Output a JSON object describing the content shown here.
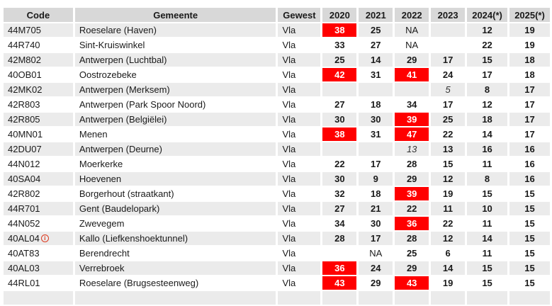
{
  "header": {
    "code": "Code",
    "gemeente": "Gemeente",
    "gewest": "Gewest",
    "years": [
      "2020",
      "2021",
      "2022",
      "2023",
      "2024(*)",
      "2025(*)"
    ]
  },
  "icons": {
    "info": "i"
  },
  "colors": {
    "highlight_red": "#ff0000",
    "header_bg": "#d8d8d8",
    "stripe_bg": "#ebebeb",
    "text": "#1a1a1a",
    "info_icon": "#dd3a1f"
  },
  "rows": [
    {
      "code": "44M705",
      "gemeente": "Roeselare (Haven)",
      "gewest": "Vla",
      "values": [
        {
          "t": "38",
          "hl": true
        },
        {
          "t": "25"
        },
        {
          "t": "NA",
          "plain": true
        },
        {
          "t": ""
        },
        {
          "t": "12"
        },
        {
          "t": "19"
        }
      ]
    },
    {
      "code": "44R740",
      "gemeente": "Sint-Kruiswinkel",
      "gewest": "Vla",
      "values": [
        {
          "t": "33"
        },
        {
          "t": "27"
        },
        {
          "t": "NA",
          "plain": true
        },
        {
          "t": ""
        },
        {
          "t": "22"
        },
        {
          "t": "19"
        }
      ]
    },
    {
      "code": "42M802",
      "gemeente": "Antwerpen (Luchtbal)",
      "gewest": "Vla",
      "values": [
        {
          "t": "25"
        },
        {
          "t": "14"
        },
        {
          "t": "29"
        },
        {
          "t": "17"
        },
        {
          "t": "15"
        },
        {
          "t": "18"
        }
      ]
    },
    {
      "code": "40OB01",
      "gemeente": "Oostrozebeke",
      "gewest": "Vla",
      "values": [
        {
          "t": "42",
          "hl": true
        },
        {
          "t": "31"
        },
        {
          "t": "41",
          "hl": true
        },
        {
          "t": "24"
        },
        {
          "t": "17"
        },
        {
          "t": "18"
        }
      ]
    },
    {
      "code": "42MK02",
      "gemeente": "Antwerpen (Merksem)",
      "gewest": "Vla",
      "values": [
        {
          "t": ""
        },
        {
          "t": ""
        },
        {
          "t": ""
        },
        {
          "t": "5",
          "it": true
        },
        {
          "t": "8"
        },
        {
          "t": "17"
        }
      ]
    },
    {
      "code": "42R803",
      "gemeente": "Antwerpen (Park Spoor Noord)",
      "gewest": "Vla",
      "values": [
        {
          "t": "27"
        },
        {
          "t": "18"
        },
        {
          "t": "34"
        },
        {
          "t": "17"
        },
        {
          "t": "12"
        },
        {
          "t": "17"
        }
      ]
    },
    {
      "code": "42R805",
      "gemeente": "Antwerpen (Belgiëlei)",
      "gewest": "Vla",
      "values": [
        {
          "t": "30"
        },
        {
          "t": "30"
        },
        {
          "t": "39",
          "hl": true
        },
        {
          "t": "25"
        },
        {
          "t": "18"
        },
        {
          "t": "17"
        }
      ]
    },
    {
      "code": "40MN01",
      "gemeente": "Menen",
      "gewest": "Vla",
      "values": [
        {
          "t": "38",
          "hl": true
        },
        {
          "t": "31"
        },
        {
          "t": "47",
          "hl": true
        },
        {
          "t": "22"
        },
        {
          "t": "14"
        },
        {
          "t": "17"
        }
      ]
    },
    {
      "code": "42DU07",
      "gemeente": "Antwerpen (Deurne)",
      "gewest": "Vla",
      "values": [
        {
          "t": ""
        },
        {
          "t": ""
        },
        {
          "t": "13",
          "it": true
        },
        {
          "t": "13"
        },
        {
          "t": "16"
        },
        {
          "t": "16"
        }
      ]
    },
    {
      "code": "44N012",
      "gemeente": "Moerkerke",
      "gewest": "Vla",
      "values": [
        {
          "t": "22"
        },
        {
          "t": "17"
        },
        {
          "t": "28"
        },
        {
          "t": "15"
        },
        {
          "t": "11"
        },
        {
          "t": "16"
        }
      ]
    },
    {
      "code": "40SA04",
      "gemeente": "Hoevenen",
      "gewest": "Vla",
      "values": [
        {
          "t": "30"
        },
        {
          "t": "9"
        },
        {
          "t": "29"
        },
        {
          "t": "12"
        },
        {
          "t": "8"
        },
        {
          "t": "16"
        }
      ]
    },
    {
      "code": "42R802",
      "gemeente": "Borgerhout (straatkant)",
      "gewest": "Vla",
      "values": [
        {
          "t": "32"
        },
        {
          "t": "18"
        },
        {
          "t": "39",
          "hl": true
        },
        {
          "t": "19"
        },
        {
          "t": "15"
        },
        {
          "t": "15"
        }
      ]
    },
    {
      "code": "44R701",
      "gemeente": "Gent (Baudelopark)",
      "gewest": "Vla",
      "values": [
        {
          "t": "27"
        },
        {
          "t": "21"
        },
        {
          "t": "22"
        },
        {
          "t": "11"
        },
        {
          "t": "10"
        },
        {
          "t": "15"
        }
      ]
    },
    {
      "code": "44N052",
      "gemeente": "Zwevegem",
      "gewest": "Vla",
      "values": [
        {
          "t": "34"
        },
        {
          "t": "30"
        },
        {
          "t": "36",
          "hl": true
        },
        {
          "t": "22"
        },
        {
          "t": "11"
        },
        {
          "t": "15"
        }
      ]
    },
    {
      "code": "40AL04",
      "info_icon": true,
      "gemeente": "Kallo (Liefkenshoektunnel)",
      "gewest": "Vla",
      "values": [
        {
          "t": "28"
        },
        {
          "t": "17"
        },
        {
          "t": "28"
        },
        {
          "t": "12"
        },
        {
          "t": "14"
        },
        {
          "t": "15"
        }
      ]
    },
    {
      "code": "40AT83",
      "gemeente": "Berendrecht",
      "gewest": "Vla",
      "values": [
        {
          "t": ""
        },
        {
          "t": "NA",
          "plain": true
        },
        {
          "t": "25"
        },
        {
          "t": "6"
        },
        {
          "t": "11"
        },
        {
          "t": "15"
        }
      ]
    },
    {
      "code": "40AL03",
      "gemeente": "Verrebroek",
      "gewest": "Vla",
      "values": [
        {
          "t": "36",
          "hl": true
        },
        {
          "t": "24"
        },
        {
          "t": "29"
        },
        {
          "t": "14"
        },
        {
          "t": "15"
        },
        {
          "t": "15"
        }
      ]
    },
    {
      "code": "44RL01",
      "gemeente": "Roeselare (Brugsesteenweg)",
      "gewest": "Vla",
      "values": [
        {
          "t": "43",
          "hl": true
        },
        {
          "t": "29"
        },
        {
          "t": "43",
          "hl": true
        },
        {
          "t": "19"
        },
        {
          "t": "15"
        },
        {
          "t": "15"
        }
      ]
    }
  ]
}
